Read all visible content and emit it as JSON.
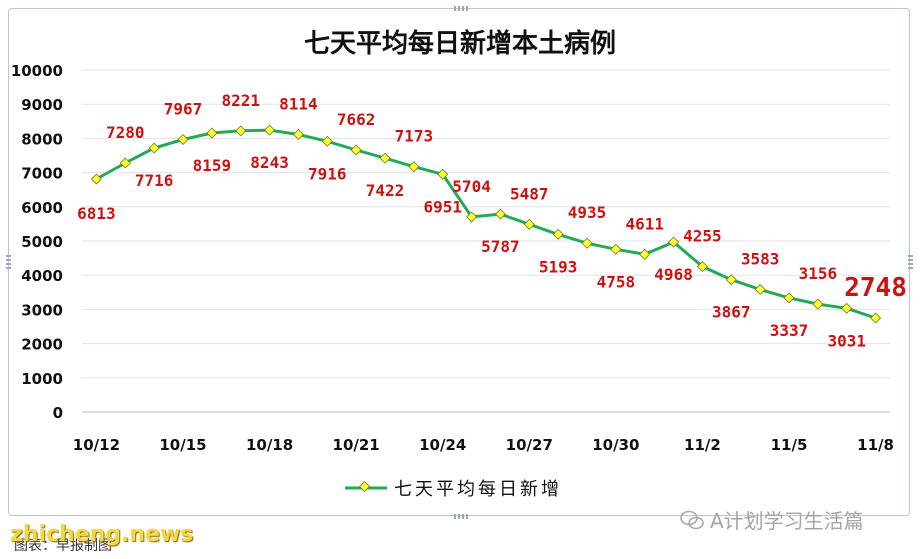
{
  "chart_data": {
    "type": "line",
    "title": "七天平均每日新增本土病例",
    "legend": {
      "label": "七天平均每日新增",
      "placement": "bottom"
    },
    "series": [
      {
        "name": "七天平均每日新增",
        "color": "#22aa55",
        "marker_color": "#ffff33"
      }
    ],
    "x": [
      "10/12",
      "10/13",
      "10/14",
      "10/15",
      "10/16",
      "10/17",
      "10/18",
      "10/19",
      "10/20",
      "10/21",
      "10/22",
      "10/23",
      "10/24",
      "10/25",
      "10/26",
      "10/27",
      "10/28",
      "10/29",
      "10/30",
      "10/31",
      "11/1",
      "11/2",
      "11/3",
      "11/4",
      "11/5",
      "11/6",
      "11/7",
      "11/8"
    ],
    "values": [
      6813,
      7280,
      7716,
      7967,
      8159,
      8221,
      8243,
      8114,
      7916,
      7662,
      7422,
      7173,
      6951,
      5704,
      5787,
      5487,
      5193,
      4935,
      4758,
      4611,
      4968,
      4255,
      3867,
      3583,
      3337,
      3156,
      3031,
      2748
    ],
    "xtick_labels": [
      "10/12",
      "10/15",
      "10/18",
      "10/21",
      "10/24",
      "10/27",
      "10/30",
      "11/2",
      "11/5",
      "11/8"
    ],
    "ylim": [
      0,
      10000
    ],
    "yticks": [
      0,
      1000,
      2000,
      3000,
      4000,
      5000,
      6000,
      7000,
      8000,
      9000,
      10000
    ],
    "grid": true,
    "data_label_color": "#cc1111",
    "highlight_last_label": true
  },
  "watermark": {
    "text": "A计划学习生活篇"
  },
  "site_mark": {
    "text": "zhicheng.news"
  },
  "source_note": {
    "text": "图表：早报制图"
  }
}
